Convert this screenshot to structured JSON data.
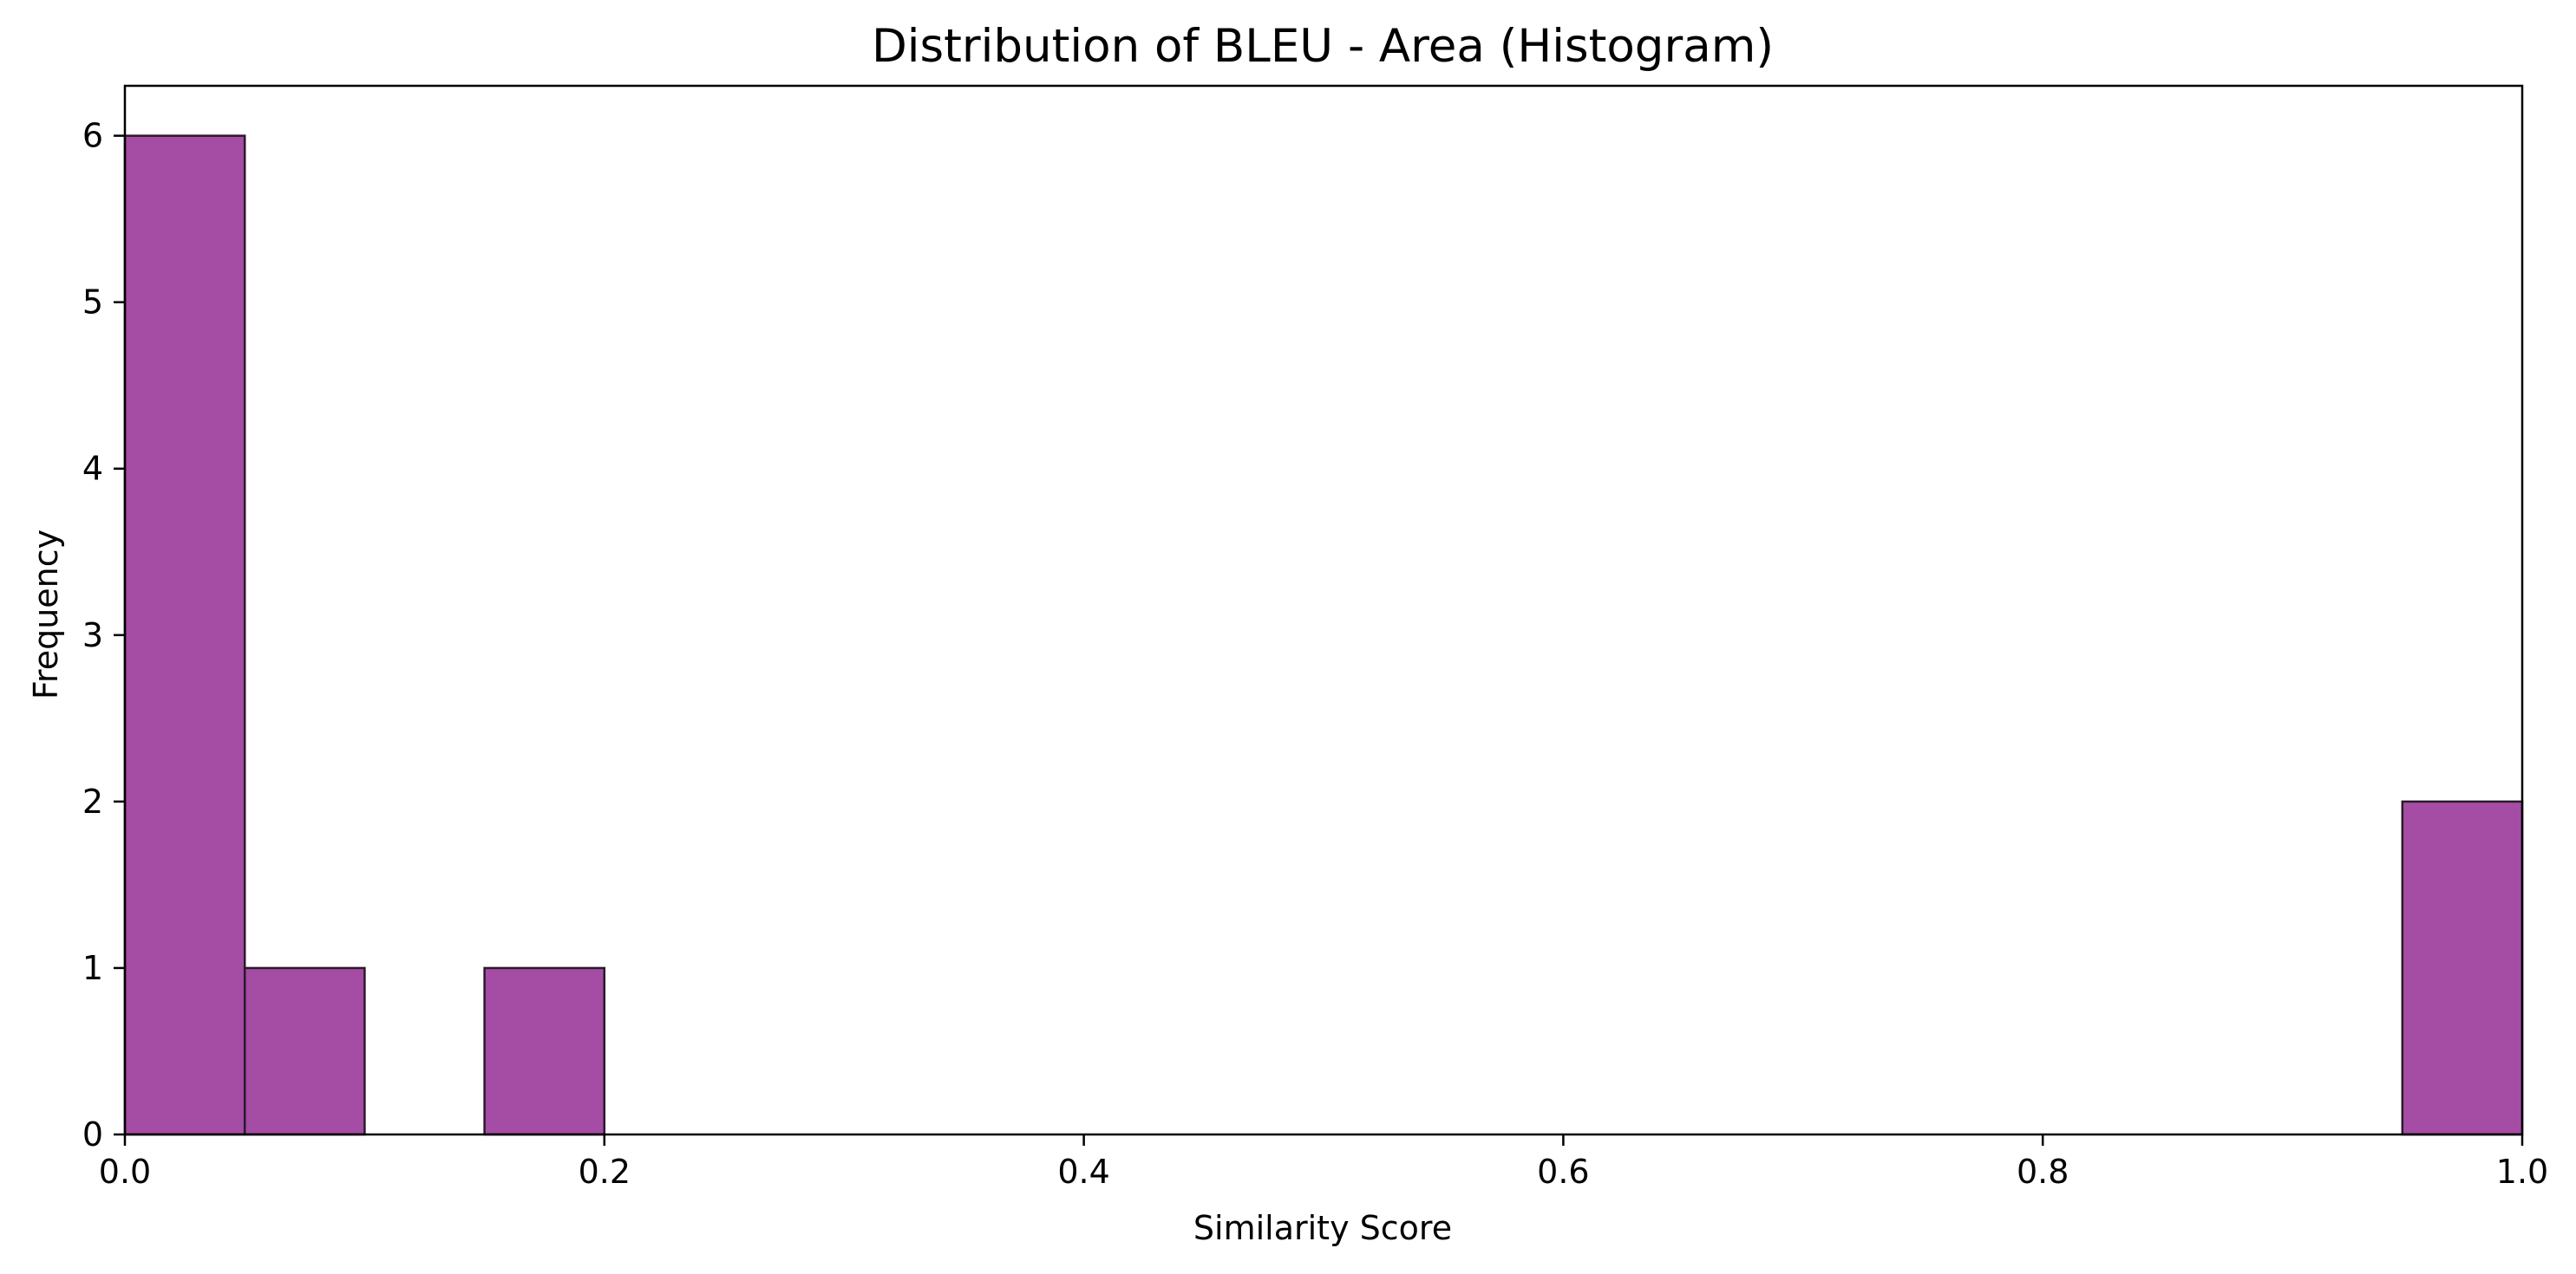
{
  "chart_data": {
    "type": "bar",
    "subtype": "histogram",
    "title": "Distribution of BLEU - Area (Histogram)",
    "xlabel": "Similarity Score",
    "ylabel": "Frequency",
    "xlim": [
      0.0,
      1.0
    ],
    "ylim": [
      0,
      6.3
    ],
    "bins": [
      {
        "start": 0.0,
        "end": 0.05,
        "count": 6
      },
      {
        "start": 0.05,
        "end": 0.1,
        "count": 1
      },
      {
        "start": 0.1,
        "end": 0.15,
        "count": 0
      },
      {
        "start": 0.15,
        "end": 0.2,
        "count": 1
      },
      {
        "start": 0.2,
        "end": 0.25,
        "count": 0
      },
      {
        "start": 0.25,
        "end": 0.3,
        "count": 0
      },
      {
        "start": 0.3,
        "end": 0.35,
        "count": 0
      },
      {
        "start": 0.35,
        "end": 0.4,
        "count": 0
      },
      {
        "start": 0.4,
        "end": 0.45,
        "count": 0
      },
      {
        "start": 0.45,
        "end": 0.5,
        "count": 0
      },
      {
        "start": 0.5,
        "end": 0.55,
        "count": 0
      },
      {
        "start": 0.55,
        "end": 0.6,
        "count": 0
      },
      {
        "start": 0.6,
        "end": 0.65,
        "count": 0
      },
      {
        "start": 0.65,
        "end": 0.7,
        "count": 0
      },
      {
        "start": 0.7,
        "end": 0.75,
        "count": 0
      },
      {
        "start": 0.75,
        "end": 0.8,
        "count": 0
      },
      {
        "start": 0.8,
        "end": 0.85,
        "count": 0
      },
      {
        "start": 0.85,
        "end": 0.9,
        "count": 0
      },
      {
        "start": 0.9,
        "end": 0.95,
        "count": 0
      },
      {
        "start": 0.95,
        "end": 1.0,
        "count": 2
      }
    ],
    "x_ticks": [
      {
        "value": 0.0,
        "label": "0.0"
      },
      {
        "value": 0.2,
        "label": "0.2"
      },
      {
        "value": 0.4,
        "label": "0.4"
      },
      {
        "value": 0.6,
        "label": "0.6"
      },
      {
        "value": 0.8,
        "label": "0.8"
      },
      {
        "value": 1.0,
        "label": "1.0"
      }
    ],
    "y_ticks": [
      {
        "value": 0,
        "label": "0"
      },
      {
        "value": 1,
        "label": "1"
      },
      {
        "value": 2,
        "label": "2"
      },
      {
        "value": 3,
        "label": "3"
      },
      {
        "value": 4,
        "label": "4"
      },
      {
        "value": 5,
        "label": "5"
      },
      {
        "value": 6,
        "label": "6"
      }
    ],
    "bar_color": "#a54ca5",
    "bar_edge_color": "#2a1a2a",
    "grid": false,
    "legend": "none"
  }
}
